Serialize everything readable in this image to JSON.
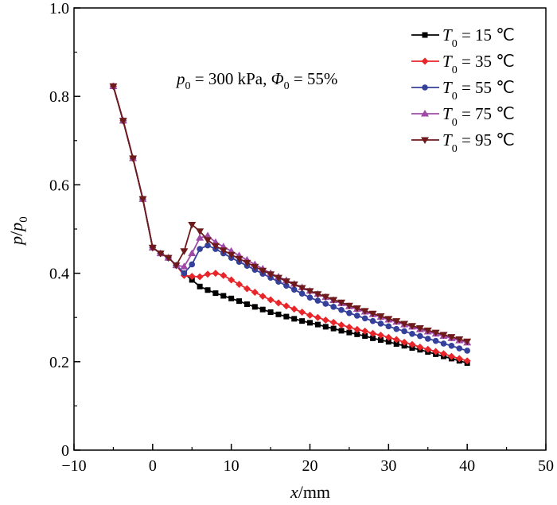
{
  "chart_data": {
    "type": "line",
    "xlabel": {
      "var": "x",
      "rest": "/mm"
    },
    "ylabel": {
      "var1": "p",
      "slash": "/",
      "var2": "p",
      "sub": "0"
    },
    "xlim": [
      -10,
      50
    ],
    "ylim": [
      0,
      1.0
    ],
    "xticks": [
      -10,
      0,
      10,
      20,
      30,
      40,
      50
    ],
    "yticks": [
      0,
      0.2,
      0.4,
      0.6,
      0.8,
      1.0
    ],
    "ytick_labels": [
      "0",
      "0.2",
      "0.4",
      "0.6",
      "0.8",
      "1.0"
    ],
    "annotation": {
      "p": "p",
      "p_sub": "0",
      "p_rest": " = 300 kPa, ",
      "phi": "Φ",
      "phi_sub": "0",
      "phi_rest": " = 55%"
    },
    "legend_position": "top-right",
    "x": [
      -5,
      -3.75,
      -2.5,
      -1.25,
      0,
      1,
      2,
      3,
      4,
      5,
      6,
      7,
      8,
      9,
      10,
      11,
      12,
      13,
      14,
      15,
      16,
      17,
      18,
      19,
      20,
      21,
      22,
      23,
      24,
      25,
      26,
      27,
      28,
      29,
      30,
      31,
      32,
      33,
      34,
      35,
      36,
      37,
      38,
      39,
      40
    ],
    "series": [
      {
        "name": "T0 = 15 ℃",
        "label": {
          "var": "T",
          "sub": "0",
          "rest": " = 15 ℃"
        },
        "color": "#000000",
        "marker": "square",
        "values": [
          0.823,
          0.745,
          0.66,
          0.568,
          0.458,
          0.445,
          0.435,
          0.418,
          0.4,
          0.385,
          0.37,
          0.362,
          0.355,
          0.349,
          0.343,
          0.337,
          0.33,
          0.324,
          0.318,
          0.312,
          0.307,
          0.302,
          0.297,
          0.292,
          0.288,
          0.284,
          0.279,
          0.275,
          0.27,
          0.266,
          0.262,
          0.258,
          0.253,
          0.249,
          0.245,
          0.24,
          0.236,
          0.231,
          0.227,
          0.222,
          0.217,
          0.212,
          0.207,
          0.202,
          0.197
        ]
      },
      {
        "name": "T0 = 35 ℃",
        "label": {
          "var": "T",
          "sub": "0",
          "rest": " = 35 ℃"
        },
        "color": "#e8262a",
        "marker": "diamond",
        "values": [
          0.823,
          0.745,
          0.66,
          0.568,
          0.458,
          0.445,
          0.435,
          0.418,
          0.395,
          0.393,
          0.392,
          0.398,
          0.4,
          0.395,
          0.385,
          0.375,
          0.365,
          0.357,
          0.348,
          0.34,
          0.333,
          0.326,
          0.319,
          0.312,
          0.305,
          0.3,
          0.294,
          0.289,
          0.283,
          0.278,
          0.273,
          0.269,
          0.264,
          0.26,
          0.255,
          0.25,
          0.244,
          0.239,
          0.233,
          0.228,
          0.223,
          0.218,
          0.212,
          0.207,
          0.202
        ]
      },
      {
        "name": "T0 = 55 ℃",
        "label": {
          "var": "T",
          "sub": "0",
          "rest": " = 55 ℃"
        },
        "color": "#34409a",
        "marker": "circle",
        "values": [
          0.823,
          0.745,
          0.66,
          0.568,
          0.458,
          0.445,
          0.435,
          0.418,
          0.4,
          0.42,
          0.455,
          0.463,
          0.455,
          0.445,
          0.435,
          0.426,
          0.417,
          0.408,
          0.399,
          0.39,
          0.381,
          0.372,
          0.363,
          0.354,
          0.345,
          0.338,
          0.331,
          0.324,
          0.317,
          0.31,
          0.304,
          0.298,
          0.292,
          0.286,
          0.28,
          0.274,
          0.269,
          0.263,
          0.258,
          0.252,
          0.247,
          0.241,
          0.236,
          0.23,
          0.225
        ]
      },
      {
        "name": "T0 = 75 ℃",
        "label": {
          "var": "T",
          "sub": "0",
          "rest": " = 75 ℃"
        },
        "color": "#a04aa8",
        "marker": "triangle-up",
        "values": [
          0.823,
          0.745,
          0.66,
          0.568,
          0.458,
          0.445,
          0.435,
          0.418,
          0.415,
          0.445,
          0.48,
          0.485,
          0.47,
          0.46,
          0.45,
          0.44,
          0.43,
          0.42,
          0.41,
          0.4,
          0.392,
          0.384,
          0.376,
          0.368,
          0.36,
          0.353,
          0.346,
          0.339,
          0.332,
          0.325,
          0.319,
          0.313,
          0.307,
          0.301,
          0.295,
          0.29,
          0.284,
          0.279,
          0.273,
          0.268,
          0.263,
          0.258,
          0.253,
          0.248,
          0.243
        ]
      },
      {
        "name": "T0 = 95 ℃",
        "label": {
          "var": "T",
          "sub": "0",
          "rest": " = 95 ℃"
        },
        "color": "#6e1a1a",
        "marker": "triangle-down",
        "values": [
          0.823,
          0.745,
          0.66,
          0.568,
          0.458,
          0.445,
          0.435,
          0.418,
          0.45,
          0.51,
          0.495,
          0.475,
          0.462,
          0.452,
          0.442,
          0.433,
          0.424,
          0.415,
          0.406,
          0.398,
          0.39,
          0.382,
          0.375,
          0.367,
          0.36,
          0.353,
          0.347,
          0.34,
          0.334,
          0.327,
          0.321,
          0.315,
          0.309,
          0.303,
          0.297,
          0.292,
          0.286,
          0.281,
          0.276,
          0.271,
          0.266,
          0.261,
          0.256,
          0.251,
          0.246
        ]
      }
    ]
  }
}
